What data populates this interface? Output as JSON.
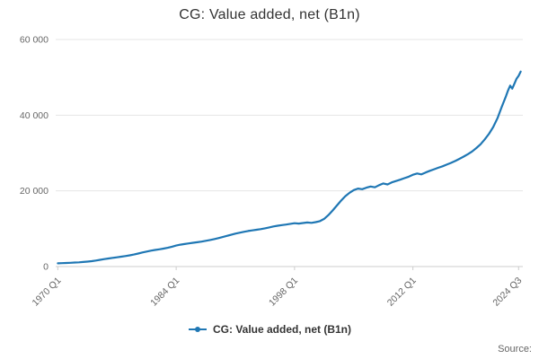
{
  "title": "CG: Value added, net (B1n)",
  "legend": {
    "label": "CG: Value added, net (B1n)"
  },
  "source": {
    "label": "Source:"
  },
  "colors": {
    "line": "#1f77b4",
    "grid": "#e6e6e6",
    "axis": "#cccccc",
    "tick_text": "#666666",
    "title_text": "#333333"
  },
  "chart_data": {
    "type": "line",
    "title": "CG: Value added, net (B1n)",
    "series_name": "CG: Value added, net (B1n)",
    "xlabel": "",
    "ylabel": "",
    "grid": true,
    "legend_position": "bottom",
    "ylim": [
      0,
      60000
    ],
    "xlim": [
      1969.75,
      2025.0
    ],
    "yticks": [
      {
        "value": 0,
        "label": "0"
      },
      {
        "value": 20000,
        "label": "20 000"
      },
      {
        "value": 40000,
        "label": "40 000"
      },
      {
        "value": 60000,
        "label": "60 000"
      }
    ],
    "xticks": [
      {
        "value": 1970.0,
        "label": "1970 Q1"
      },
      {
        "value": 1984.0,
        "label": "1984 Q1"
      },
      {
        "value": 1998.0,
        "label": "1998 Q1"
      },
      {
        "value": 2012.0,
        "label": "2012 Q1"
      },
      {
        "value": 2024.5,
        "label": "2024 Q3"
      }
    ],
    "x_unit": "decimal year (quarterly series)",
    "points": [
      [
        1970.0,
        850
      ],
      [
        1970.5,
        900
      ],
      [
        1971.0,
        950
      ],
      [
        1971.5,
        1000
      ],
      [
        1972.0,
        1060
      ],
      [
        1972.5,
        1120
      ],
      [
        1973.0,
        1200
      ],
      [
        1973.5,
        1300
      ],
      [
        1974.0,
        1430
      ],
      [
        1974.5,
        1580
      ],
      [
        1975.0,
        1780
      ],
      [
        1975.5,
        1970
      ],
      [
        1976.0,
        2140
      ],
      [
        1976.5,
        2290
      ],
      [
        1977.0,
        2450
      ],
      [
        1977.5,
        2600
      ],
      [
        1978.0,
        2780
      ],
      [
        1978.5,
        2970
      ],
      [
        1979.0,
        3180
      ],
      [
        1979.5,
        3430
      ],
      [
        1980.0,
        3720
      ],
      [
        1980.5,
        3970
      ],
      [
        1981.0,
        4200
      ],
      [
        1981.5,
        4380
      ],
      [
        1982.0,
        4560
      ],
      [
        1982.5,
        4750
      ],
      [
        1983.0,
        4960
      ],
      [
        1983.5,
        5250
      ],
      [
        1984.0,
        5560
      ],
      [
        1984.5,
        5780
      ],
      [
        1985.0,
        5950
      ],
      [
        1985.5,
        6120
      ],
      [
        1986.0,
        6280
      ],
      [
        1986.5,
        6430
      ],
      [
        1987.0,
        6600
      ],
      [
        1987.5,
        6800
      ],
      [
        1988.0,
        7020
      ],
      [
        1988.5,
        7260
      ],
      [
        1989.0,
        7520
      ],
      [
        1989.5,
        7800
      ],
      [
        1990.0,
        8100
      ],
      [
        1990.5,
        8400
      ],
      [
        1991.0,
        8700
      ],
      [
        1991.5,
        8950
      ],
      [
        1992.0,
        9180
      ],
      [
        1992.5,
        9380
      ],
      [
        1993.0,
        9560
      ],
      [
        1993.5,
        9720
      ],
      [
        1994.0,
        9900
      ],
      [
        1994.5,
        10100
      ],
      [
        1995.0,
        10350
      ],
      [
        1995.5,
        10600
      ],
      [
        1996.0,
        10800
      ],
      [
        1996.5,
        10950
      ],
      [
        1997.0,
        11100
      ],
      [
        1997.5,
        11300
      ],
      [
        1998.0,
        11450
      ],
      [
        1998.5,
        11350
      ],
      [
        1999.0,
        11500
      ],
      [
        1999.5,
        11650
      ],
      [
        2000.0,
        11550
      ],
      [
        2000.5,
        11750
      ],
      [
        2001.0,
        12000
      ],
      [
        2001.5,
        12600
      ],
      [
        2002.0,
        13600
      ],
      [
        2002.5,
        14800
      ],
      [
        2003.0,
        16100
      ],
      [
        2003.5,
        17400
      ],
      [
        2004.0,
        18600
      ],
      [
        2004.5,
        19500
      ],
      [
        2005.0,
        20200
      ],
      [
        2005.5,
        20600
      ],
      [
        2006.0,
        20450
      ],
      [
        2006.5,
        20850
      ],
      [
        2007.0,
        21150
      ],
      [
        2007.5,
        20950
      ],
      [
        2008.0,
        21500
      ],
      [
        2008.5,
        21950
      ],
      [
        2009.0,
        21700
      ],
      [
        2009.5,
        22250
      ],
      [
        2010.0,
        22600
      ],
      [
        2010.5,
        22950
      ],
      [
        2011.0,
        23350
      ],
      [
        2011.5,
        23750
      ],
      [
        2012.0,
        24250
      ],
      [
        2012.5,
        24600
      ],
      [
        2013.0,
        24350
      ],
      [
        2013.5,
        24850
      ],
      [
        2014.0,
        25300
      ],
      [
        2014.5,
        25700
      ],
      [
        2015.0,
        26100
      ],
      [
        2015.5,
        26500
      ],
      [
        2016.0,
        26950
      ],
      [
        2016.5,
        27400
      ],
      [
        2017.0,
        27900
      ],
      [
        2017.5,
        28450
      ],
      [
        2018.0,
        29050
      ],
      [
        2018.5,
        29700
      ],
      [
        2019.0,
        30400
      ],
      [
        2019.5,
        31300
      ],
      [
        2020.0,
        32300
      ],
      [
        2020.5,
        33600
      ],
      [
        2021.0,
        35100
      ],
      [
        2021.5,
        36900
      ],
      [
        2022.0,
        39200
      ],
      [
        2022.5,
        42200
      ],
      [
        2023.0,
        45000
      ],
      [
        2023.25,
        46500
      ],
      [
        2023.5,
        47800
      ],
      [
        2023.75,
        47000
      ],
      [
        2024.0,
        48300
      ],
      [
        2024.25,
        49600
      ],
      [
        2024.5,
        50400
      ],
      [
        2024.75,
        51500
      ]
    ]
  }
}
